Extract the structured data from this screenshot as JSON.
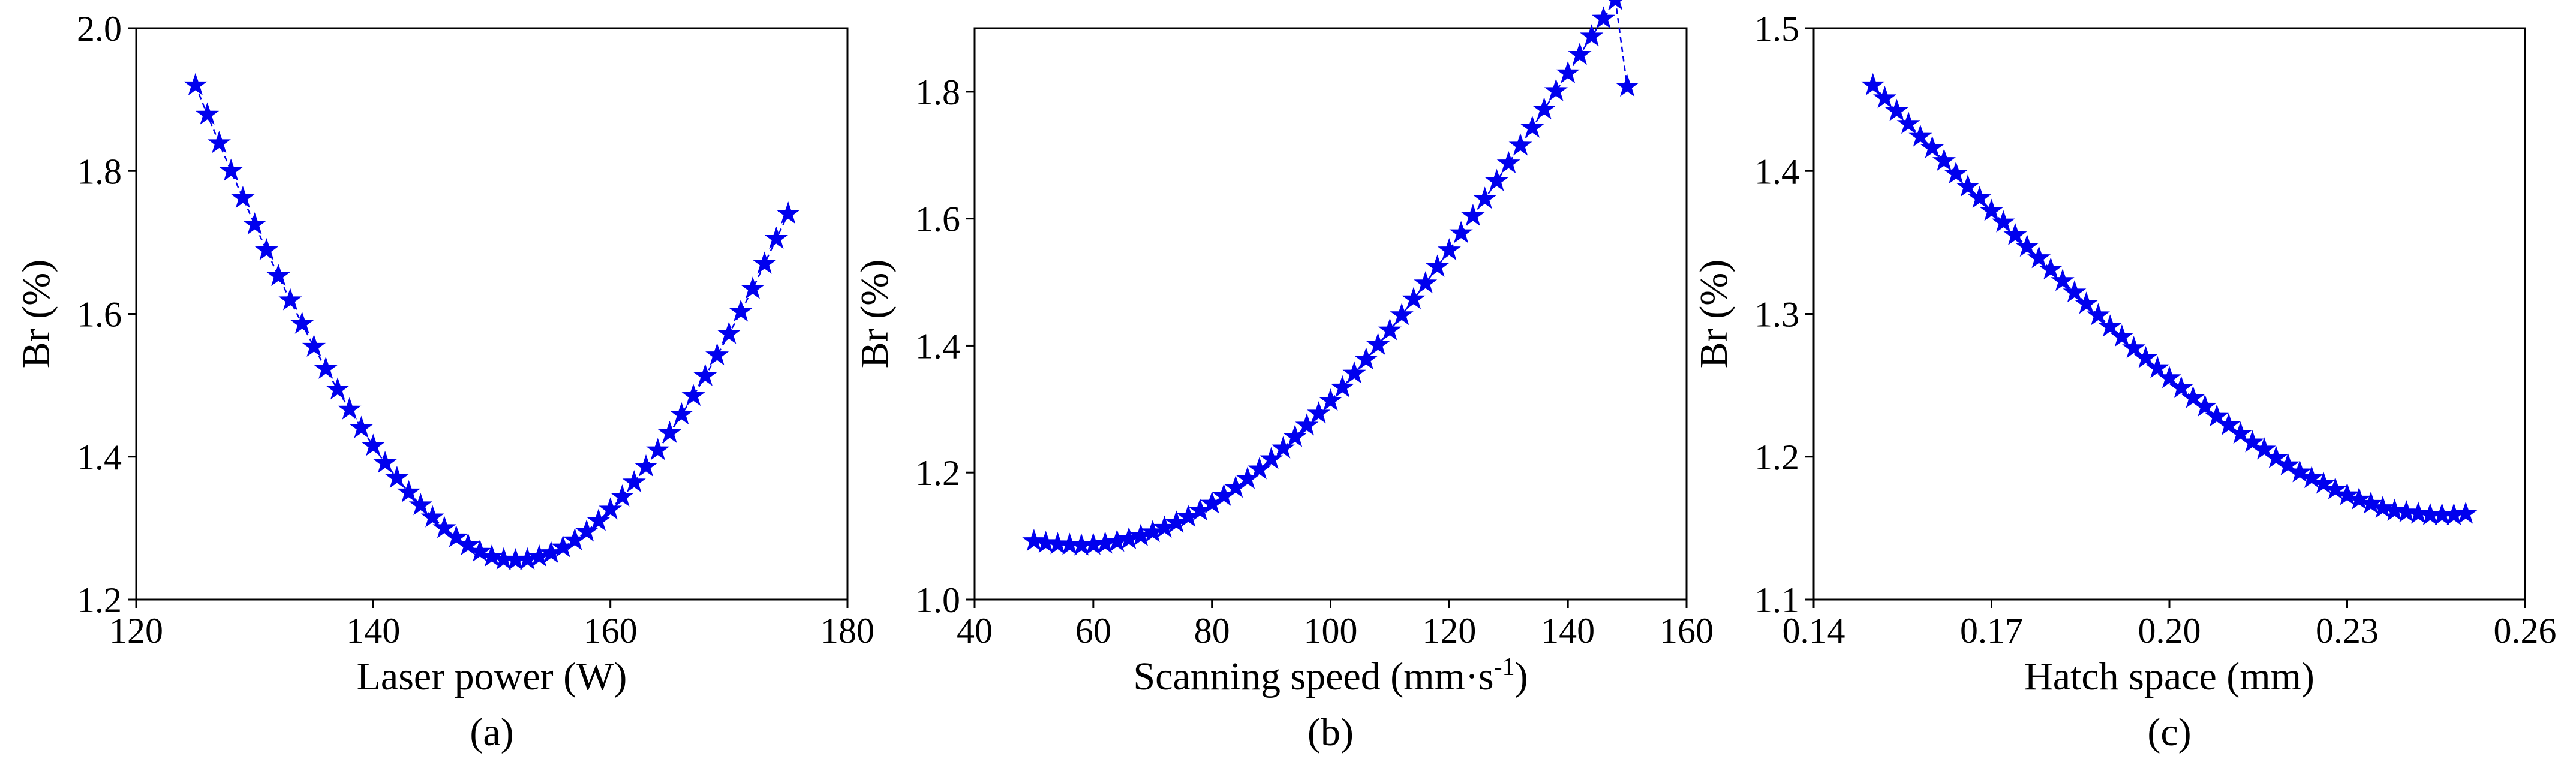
{
  "chart_data": [
    {
      "type": "line",
      "sublabel": "(a)",
      "xlabel": "Laser power (W)",
      "ylabel": "Br (%)",
      "xlim": [
        120,
        180
      ],
      "ylim": [
        1.2,
        2.0
      ],
      "xticks": [
        120,
        140,
        160,
        180
      ],
      "yticks": [
        1.2,
        1.4,
        1.6,
        1.8,
        2.0
      ],
      "xtick_labels": [
        "120",
        "140",
        "160",
        "180"
      ],
      "ytick_labels": [
        "1.2",
        "1.4",
        "1.6",
        "1.8",
        "2.0"
      ],
      "marker": "star",
      "color": "#0000ee",
      "series": [
        {
          "name": "Br",
          "x": [
            125,
            126,
            127,
            128,
            129,
            130,
            131,
            132,
            133,
            134,
            135,
            136,
            137,
            138,
            139,
            140,
            141,
            142,
            143,
            144,
            145,
            146,
            147,
            148,
            149,
            150,
            151,
            152,
            153,
            154,
            155,
            156,
            157,
            158,
            159,
            160,
            161,
            162,
            163,
            164,
            165,
            166,
            167,
            168,
            169,
            170,
            171,
            172,
            173,
            174,
            175
          ],
          "y": [
            1.92,
            1.879,
            1.839,
            1.8,
            1.762,
            1.725,
            1.689,
            1.653,
            1.619,
            1.586,
            1.554,
            1.523,
            1.494,
            1.466,
            1.44,
            1.415,
            1.391,
            1.37,
            1.35,
            1.332,
            1.315,
            1.3,
            1.287,
            1.276,
            1.267,
            1.26,
            1.256,
            1.255,
            1.256,
            1.26,
            1.265,
            1.273,
            1.283,
            1.295,
            1.31,
            1.326,
            1.344,
            1.364,
            1.386,
            1.409,
            1.433,
            1.459,
            1.485,
            1.513,
            1.542,
            1.572,
            1.603,
            1.635,
            1.67,
            1.705,
            1.74
          ]
        }
      ]
    },
    {
      "type": "line",
      "sublabel": "(b)",
      "xlabel": "Scanning speed (mm·s",
      "xlabel_sup": "-1",
      "xlabel_end": ")",
      "ylabel": "Br (%)",
      "xlim": [
        40,
        160
      ],
      "ylim": [
        1.0,
        1.9
      ],
      "xticks": [
        40,
        60,
        80,
        100,
        120,
        140,
        160
      ],
      "yticks": [
        1.0,
        1.2,
        1.4,
        1.6,
        1.8
      ],
      "xtick_labels": [
        "40",
        "60",
        "80",
        "100",
        "120",
        "140",
        "160"
      ],
      "ytick_labels": [
        "1.0",
        "1.2",
        "1.4",
        "1.6",
        "1.8"
      ],
      "marker": "star",
      "color": "#0000ee",
      "series": [
        {
          "name": "Br",
          "x": [
            50,
            52,
            54,
            56,
            58,
            60,
            62,
            64,
            66,
            68,
            70,
            72,
            74,
            76,
            78,
            80,
            82,
            84,
            86,
            88,
            90,
            92,
            94,
            96,
            98,
            100,
            102,
            104,
            106,
            108,
            110,
            112,
            114,
            116,
            118,
            120,
            122,
            124,
            126,
            128,
            130,
            132,
            134,
            136,
            138,
            140,
            142,
            144,
            146,
            148,
            150
          ],
          "y": [
            1.092,
            1.089,
            1.087,
            1.086,
            1.085,
            1.086,
            1.088,
            1.091,
            1.095,
            1.1,
            1.106,
            1.113,
            1.121,
            1.13,
            1.14,
            1.151,
            1.163,
            1.176,
            1.19,
            1.205,
            1.221,
            1.238,
            1.256,
            1.274,
            1.293,
            1.313,
            1.334,
            1.356,
            1.378,
            1.401,
            1.424,
            1.448,
            1.473,
            1.498,
            1.524,
            1.55,
            1.577,
            1.604,
            1.631,
            1.659,
            1.687,
            1.715,
            1.743,
            1.772,
            1.801,
            1.829,
            1.858,
            1.887,
            1.915,
            1.944,
            1.808
          ]
        }
      ]
    },
    {
      "type": "line",
      "sublabel": "(c)",
      "xlabel": "Hatch space (mm)",
      "ylabel": "Br (%)",
      "xlim": [
        0.14,
        0.26
      ],
      "ylim": [
        1.1,
        1.5
      ],
      "xticks": [
        0.14,
        0.17,
        0.2,
        0.23,
        0.26
      ],
      "yticks": [
        1.1,
        1.2,
        1.3,
        1.4,
        1.5
      ],
      "xtick_labels": [
        "0.14",
        "0.17",
        "0.20",
        "0.23",
        "0.26"
      ],
      "ytick_labels": [
        "1.1",
        "1.2",
        "1.3",
        "1.4",
        "1.5"
      ],
      "marker": "star",
      "color": "#0000ee",
      "series": [
        {
          "name": "Br",
          "x": [
            0.15,
            0.152,
            0.154,
            0.156,
            0.158,
            0.16,
            0.162,
            0.164,
            0.166,
            0.168,
            0.17,
            0.172,
            0.174,
            0.176,
            0.178,
            0.18,
            0.182,
            0.184,
            0.186,
            0.188,
            0.19,
            0.192,
            0.194,
            0.196,
            0.198,
            0.2,
            0.202,
            0.204,
            0.206,
            0.208,
            0.21,
            0.212,
            0.214,
            0.216,
            0.218,
            0.22,
            0.222,
            0.224,
            0.226,
            0.228,
            0.23,
            0.232,
            0.234,
            0.236,
            0.238,
            0.24,
            0.242,
            0.244,
            0.246,
            0.248,
            0.25
          ],
          "y": [
            1.46,
            1.451,
            1.442,
            1.433,
            1.424,
            1.416,
            1.407,
            1.398,
            1.389,
            1.381,
            1.372,
            1.364,
            1.355,
            1.347,
            1.339,
            1.331,
            1.323,
            1.315,
            1.307,
            1.299,
            1.291,
            1.284,
            1.276,
            1.269,
            1.262,
            1.255,
            1.248,
            1.241,
            1.235,
            1.228,
            1.222,
            1.216,
            1.21,
            1.205,
            1.199,
            1.194,
            1.189,
            1.185,
            1.181,
            1.177,
            1.173,
            1.17,
            1.167,
            1.164,
            1.162,
            1.161,
            1.16,
            1.159,
            1.159,
            1.159,
            1.16
          ]
        }
      ]
    }
  ]
}
